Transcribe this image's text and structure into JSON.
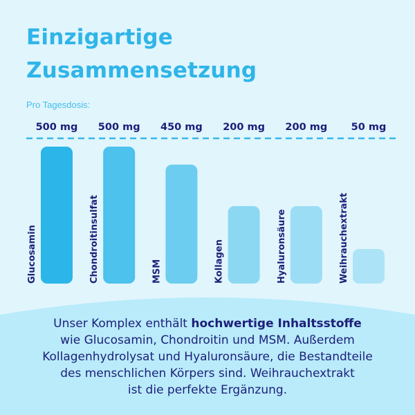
{
  "header": {
    "title_line1": "Einzigartige",
    "title_line2": "Zusammensetzung"
  },
  "chart_data": {
    "type": "bar",
    "title": "Einzigartige Zusammensetzung",
    "subtitle": "Pro Tagesdosis:",
    "categories": [
      "Glucosamin",
      "Chondroitinsulfat",
      "MSM",
      "Kollagen",
      "Hyaluronsäure",
      "Weihrauchextrakt"
    ],
    "values": [
      500,
      500,
      450,
      200,
      200,
      50
    ],
    "value_labels": [
      "500 mg",
      "500 mg",
      "450 mg",
      "200 mg",
      "200 mg",
      "50 mg"
    ],
    "unit": "mg",
    "colors": [
      "#2bb5e8",
      "#4cc2ec",
      "#6dcdf0",
      "#8cd8f3",
      "#9bddf5",
      "#ade3f7"
    ],
    "grid": false,
    "legend": "none"
  },
  "colors": {
    "title": "#2fb5e8",
    "text": "#1d1f78",
    "background": "#e1f5fd",
    "panel": "#b9ebfb",
    "dash": "#35b8e8"
  },
  "description": {
    "line1_normal": "Unser Komplex enthält ",
    "line1_bold": "hochwertige Inhaltsstoffe",
    "line2": "wie Glucosamin, Chondroitin und MSM. Außerdem",
    "line3": "Kollagenhydrolysat und Hyaluronsäure, die Bestandteile",
    "line4": "des menschlichen Körpers sind. Weihrauchextrakt",
    "line5": "ist die perfekte Ergänzung."
  }
}
